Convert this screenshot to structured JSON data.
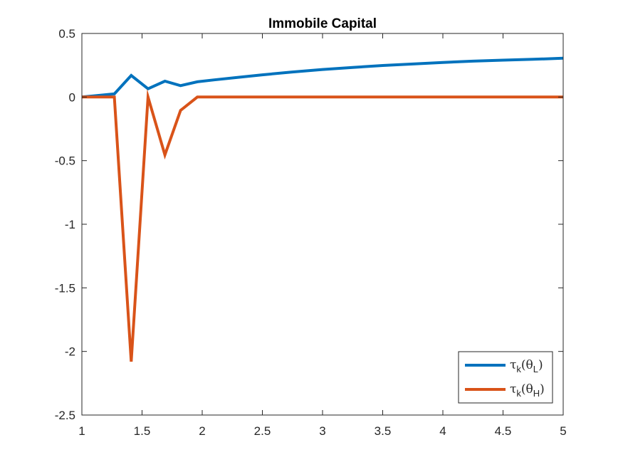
{
  "chart_data": {
    "type": "line",
    "title": "Immobile Capital",
    "xlabel": "",
    "ylabel": "",
    "xlim": [
      1,
      5
    ],
    "ylim": [
      -2.5,
      0.5
    ],
    "xticks": [
      "1",
      "1.5",
      "2",
      "2.5",
      "3",
      "3.5",
      "4",
      "4.5",
      "5"
    ],
    "xtick_values": [
      1,
      1.5,
      2,
      2.5,
      3,
      3.5,
      4,
      4.5,
      5
    ],
    "yticks": [
      "0.5",
      "0",
      "-0.5",
      "-1",
      "-1.5",
      "-2",
      "-2.5"
    ],
    "ytick_values": [
      0.5,
      0,
      -0.5,
      -1,
      -1.5,
      -2,
      -2.5
    ],
    "grid": false,
    "legend_position": "bottom-right",
    "series": [
      {
        "name": "τk(θL)",
        "legend_base": "τ",
        "legend_sub1": "k",
        "legend_mid": "(θ",
        "legend_sub2": "L",
        "legend_end": ")",
        "color": "#0072BD",
        "x": [
          1.0,
          1.27,
          1.41,
          1.55,
          1.69,
          1.82,
          1.96,
          2.1,
          2.3,
          2.5,
          2.75,
          3.0,
          3.25,
          3.5,
          3.75,
          4.0,
          4.25,
          4.5,
          4.75,
          5.0
        ],
        "y": [
          0.0,
          0.025,
          0.17,
          0.065,
          0.125,
          0.09,
          0.12,
          0.135,
          0.155,
          0.175,
          0.197,
          0.217,
          0.233,
          0.248,
          0.26,
          0.272,
          0.282,
          0.29,
          0.297,
          0.305
        ]
      },
      {
        "name": "τk(θH)",
        "legend_base": "τ",
        "legend_sub1": "k",
        "legend_mid": "(θ",
        "legend_sub2": "H",
        "legend_end": ")",
        "color": "#D95319",
        "x": [
          1.0,
          1.27,
          1.41,
          1.55,
          1.69,
          1.82,
          1.96,
          2.5,
          3.0,
          3.5,
          4.0,
          4.5,
          5.0
        ],
        "y": [
          0.0,
          0.0,
          -2.08,
          0.0,
          -0.455,
          -0.105,
          0.0,
          0.0,
          0.0,
          0.0,
          0.0,
          0.0,
          0.0
        ]
      }
    ]
  }
}
